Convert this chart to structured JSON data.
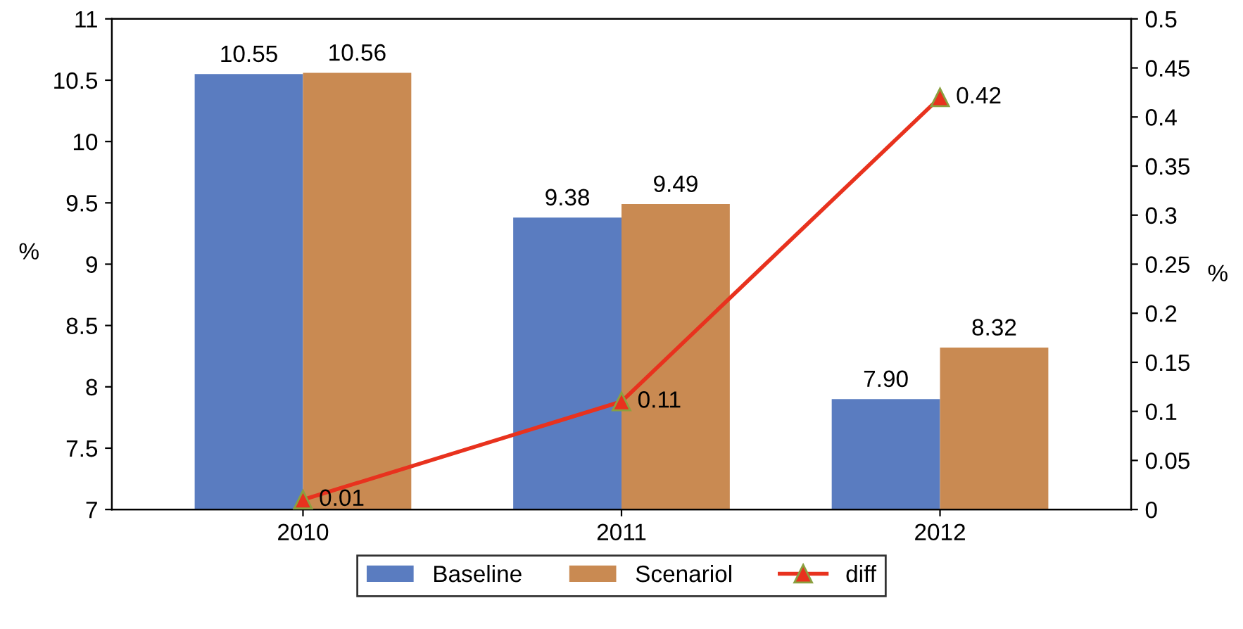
{
  "chart_data": {
    "type": "bar",
    "categories": [
      "2010",
      "2011",
      "2012"
    ],
    "ylabel": "%",
    "y2label": "%",
    "ylim": [
      7,
      11
    ],
    "yticks": [
      7,
      7.5,
      8,
      8.5,
      9,
      9.5,
      10,
      10.5,
      11
    ],
    "y2lim": [
      0,
      0.5
    ],
    "y2ticks": [
      0,
      0.05,
      0.1,
      0.15,
      0.2,
      0.25,
      0.3,
      0.35,
      0.4,
      0.45,
      0.5
    ],
    "series": [
      {
        "name": "Baseline",
        "color": "#5a7cc0",
        "values": [
          10.55,
          9.38,
          7.9
        ],
        "value_labels": [
          "10.55",
          "9.38",
          "7.90"
        ]
      },
      {
        "name": "Scenariol",
        "color": "#c98a52",
        "values": [
          10.56,
          9.49,
          8.32
        ],
        "value_labels": [
          "10.56",
          "9.49",
          "8.32"
        ]
      },
      {
        "name": "diff",
        "type": "line",
        "axis": "y2",
        "color": "#e8321e",
        "marker": "triangle",
        "line_style": "solid",
        "values": [
          0.01,
          0.11,
          0.42
        ],
        "value_labels": [
          "0.01",
          "0.11",
          "0.42"
        ]
      }
    ],
    "legend": "bottom",
    "grid": false
  }
}
